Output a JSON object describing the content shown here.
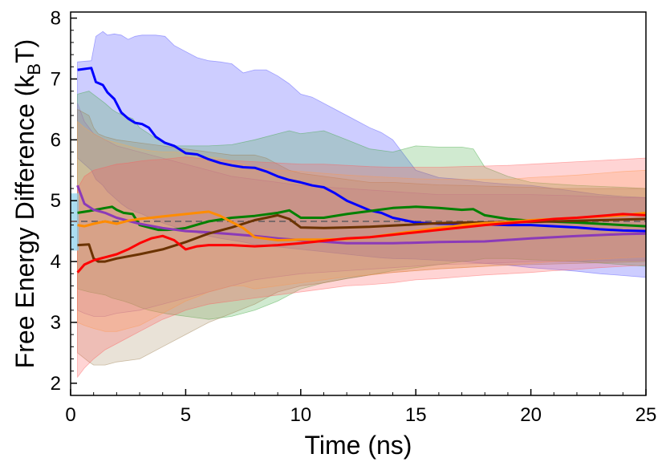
{
  "chart_data": {
    "type": "line",
    "title": "",
    "xlabel": "Time (ns)",
    "ylabel_main": "Free Energy Difference (k",
    "ylabel_sub": "B",
    "ylabel_end": "T)",
    "xlim": [
      0,
      25
    ],
    "ylim": [
      1.8,
      8.1
    ],
    "xticks": [
      0,
      5,
      10,
      15,
      20,
      25
    ],
    "yticks": [
      2,
      3,
      4,
      5,
      6,
      7,
      8
    ],
    "xtick_labels": [
      "0",
      "5",
      "10",
      "15",
      "20",
      "25"
    ],
    "ytick_labels": [
      "2",
      "3",
      "4",
      "5",
      "6",
      "7",
      "8"
    ],
    "grid": false,
    "reference": {
      "value": 4.66,
      "lower": 4.18,
      "upper": 5.12,
      "line_color": "#7a6a6a",
      "band_color": "#87ceeb",
      "x_extent": [
        0,
        0.35
      ]
    },
    "series": [
      {
        "name": "blue",
        "color": "#0000ff",
        "band_color": "#4a4aff",
        "band_opacity": 0.28,
        "x": [
          0.3,
          0.9,
          1.1,
          1.4,
          1.6,
          1.9,
          2.2,
          2.5,
          2.8,
          3.1,
          3.4,
          3.7,
          4.1,
          4.5,
          5.0,
          5.5,
          6.0,
          6.5,
          7.0,
          7.5,
          8.0,
          8.5,
          9.0,
          9.5,
          10.0,
          10.5,
          11.0,
          11.5,
          12.0,
          12.5,
          13.0,
          13.5,
          14.0,
          15.0,
          16.0,
          17.0,
          18.0,
          19.0,
          20.0,
          21.0,
          22.0,
          23.0,
          24.0,
          25.0
        ],
        "y": [
          7.15,
          7.18,
          6.95,
          6.9,
          6.78,
          6.67,
          6.45,
          6.35,
          6.28,
          6.26,
          6.2,
          6.05,
          5.95,
          5.9,
          5.78,
          5.76,
          5.68,
          5.62,
          5.58,
          5.55,
          5.54,
          5.48,
          5.4,
          5.34,
          5.3,
          5.25,
          5.22,
          5.12,
          5.0,
          4.92,
          4.84,
          4.8,
          4.72,
          4.64,
          4.62,
          4.62,
          4.61,
          4.6,
          4.6,
          4.58,
          4.56,
          4.53,
          4.51,
          4.5
        ],
        "lower": [
          5.7,
          5.5,
          5.35,
          5.25,
          5.15,
          5.05,
          4.95,
          4.87,
          4.82,
          4.78,
          4.73,
          4.68,
          4.62,
          4.57,
          4.5,
          4.47,
          4.42,
          4.38,
          4.35,
          4.32,
          4.28,
          4.26,
          4.24,
          4.22,
          4.2,
          4.18,
          4.16,
          4.14,
          4.12,
          4.1,
          4.08,
          4.06,
          4.05,
          4.04,
          4.02,
          4.0,
          3.97,
          3.94,
          3.9,
          3.87,
          3.84,
          3.8,
          3.77,
          3.74
        ],
        "upper": [
          7.28,
          7.3,
          7.7,
          7.78,
          7.72,
          7.74,
          7.72,
          7.65,
          7.7,
          7.72,
          7.72,
          7.72,
          7.7,
          7.55,
          7.45,
          7.35,
          7.3,
          7.28,
          7.25,
          7.1,
          7.15,
          7.15,
          7.05,
          6.92,
          6.75,
          6.7,
          6.6,
          6.5,
          6.4,
          6.3,
          6.2,
          6.12,
          6.0,
          5.5,
          5.38,
          5.35,
          5.3,
          5.27,
          5.25,
          5.2,
          5.15,
          5.1,
          5.07,
          5.05
        ]
      },
      {
        "name": "green",
        "color": "#008000",
        "band_color": "#3aa63a",
        "band_opacity": 0.24,
        "x": [
          0.3,
          0.8,
          1.5,
          1.8,
          2.0,
          2.3,
          2.7,
          3.0,
          3.4,
          3.8,
          4.2,
          4.6,
          5.0,
          6.0,
          7.0,
          8.0,
          9.0,
          9.5,
          10.0,
          11.0,
          12.0,
          13.0,
          14.0,
          15.0,
          16.0,
          17.0,
          17.5,
          18.0,
          19.0,
          20.0,
          22.0,
          24.0,
          25.0
        ],
        "y": [
          4.8,
          4.83,
          4.88,
          4.9,
          4.85,
          4.8,
          4.78,
          4.6,
          4.56,
          4.52,
          4.52,
          4.53,
          4.55,
          4.66,
          4.72,
          4.75,
          4.8,
          4.84,
          4.72,
          4.72,
          4.78,
          4.83,
          4.88,
          4.9,
          4.88,
          4.85,
          4.86,
          4.76,
          4.7,
          4.67,
          4.64,
          4.6,
          4.58
        ],
        "lower": [
          3.55,
          3.5,
          3.45,
          3.4,
          3.38,
          3.35,
          3.3,
          3.25,
          3.2,
          3.17,
          3.14,
          3.12,
          3.1,
          3.05,
          3.1,
          3.2,
          3.35,
          3.45,
          3.55,
          3.65,
          3.72,
          3.78,
          3.85,
          3.9,
          3.95,
          4.0,
          4.02,
          4.05,
          4.05,
          4.03,
          4.0,
          3.95,
          3.92
        ],
        "upper": [
          6.75,
          6.8,
          6.6,
          6.5,
          6.45,
          6.4,
          6.35,
          6.2,
          6.1,
          6.0,
          5.95,
          5.9,
          5.9,
          5.9,
          5.92,
          6.0,
          6.1,
          6.15,
          6.1,
          6.15,
          6.0,
          5.85,
          5.8,
          5.9,
          5.88,
          5.88,
          5.85,
          5.55,
          5.4,
          5.3,
          5.25,
          5.22,
          5.2
        ]
      },
      {
        "name": "purple",
        "color": "#8b3ab8",
        "band_color": "#9060c0",
        "band_opacity": 0.15,
        "x": [
          0.3,
          0.6,
          1.0,
          1.5,
          2.0,
          3.0,
          4.0,
          5.0,
          6.0,
          7.0,
          8.0,
          9.0,
          10.0,
          12.0,
          14.0,
          16.0,
          18.0,
          20.0,
          22.0,
          24.0,
          25.0
        ],
        "y": [
          5.25,
          4.95,
          4.85,
          4.8,
          4.72,
          4.62,
          4.55,
          4.5,
          4.48,
          4.45,
          4.42,
          4.38,
          4.35,
          4.3,
          4.3,
          4.32,
          4.33,
          4.38,
          4.42,
          4.45,
          4.46
        ],
        "lower": [
          3.2,
          3.15,
          3.1,
          3.1,
          3.15,
          3.2,
          3.3,
          3.4,
          3.5,
          3.6,
          3.7,
          3.75,
          3.8,
          3.85,
          3.9,
          3.95,
          3.97,
          4.0,
          4.0,
          4.02,
          4.02
        ],
        "upper": [
          6.6,
          6.3,
          6.1,
          6.0,
          5.9,
          5.8,
          5.7,
          5.6,
          5.5,
          5.4,
          5.35,
          5.3,
          5.25,
          5.2,
          5.15,
          5.1,
          5.1,
          5.1,
          5.08,
          5.05,
          5.05
        ]
      },
      {
        "name": "brown",
        "color": "#6b3300",
        "band_color": "#9a7a4a",
        "band_opacity": 0.22,
        "x": [
          0.3,
          0.8,
          1.0,
          1.2,
          1.5,
          2.0,
          3.0,
          4.0,
          5.0,
          6.0,
          7.0,
          8.0,
          8.5,
          9.0,
          9.5,
          10.0,
          11.0,
          12.0,
          13.0,
          14.0,
          15.0,
          16.0,
          17.0,
          18.0,
          19.0,
          20.0,
          21.0,
          22.0,
          23.0,
          24.0,
          25.0
        ],
        "y": [
          4.27,
          4.28,
          4.05,
          4.0,
          4.0,
          4.05,
          4.12,
          4.2,
          4.32,
          4.46,
          4.56,
          4.68,
          4.72,
          4.76,
          4.7,
          4.56,
          4.55,
          4.56,
          4.57,
          4.59,
          4.61,
          4.63,
          4.64,
          4.64,
          4.65,
          4.65,
          4.66,
          4.67,
          4.68,
          4.69,
          4.7
        ],
        "lower": [
          2.5,
          2.35,
          2.3,
          2.3,
          2.3,
          2.35,
          2.4,
          2.6,
          2.8,
          3.0,
          3.15,
          3.3,
          3.4,
          3.5,
          3.55,
          3.6,
          3.65,
          3.72,
          3.78,
          3.82,
          3.85,
          3.88,
          3.9,
          3.92,
          3.94,
          3.95,
          3.96,
          3.97,
          3.98,
          3.99,
          4.0
        ],
        "upper": [
          6.5,
          6.4,
          6.2,
          6.1,
          6.05,
          6.0,
          5.95,
          5.9,
          5.85,
          5.8,
          5.75,
          5.75,
          5.7,
          5.6,
          5.5,
          5.45,
          5.4,
          5.35,
          5.3,
          5.3,
          5.28,
          5.26,
          5.25,
          5.24,
          5.23,
          5.22,
          5.2,
          5.2,
          5.2,
          5.2,
          5.2
        ]
      },
      {
        "name": "orange",
        "color": "#ff8c00",
        "band_color": "#ffab4a",
        "band_opacity": 0.22,
        "x": [
          0.3,
          0.6,
          1.0,
          1.5,
          2.0,
          2.5,
          3.0,
          3.5,
          4.0,
          4.5,
          5.0,
          5.5,
          6.0,
          6.5,
          7.0,
          7.5,
          8.0,
          9.0,
          10.0,
          11.0,
          12.0,
          13.0,
          14.0,
          15.0,
          16.0,
          17.0,
          18.0,
          19.0,
          20.0,
          21.0,
          22.0,
          23.0,
          24.0,
          25.0
        ],
        "y": [
          4.6,
          4.58,
          4.62,
          4.66,
          4.62,
          4.67,
          4.7,
          4.72,
          4.74,
          4.76,
          4.78,
          4.8,
          4.82,
          4.75,
          4.65,
          4.55,
          4.4,
          4.35,
          4.36,
          4.36,
          4.37,
          4.4,
          4.45,
          4.5,
          4.55,
          4.6,
          4.63,
          4.65,
          4.68,
          4.7,
          4.72,
          4.74,
          4.76,
          4.8
        ],
        "lower": [
          3.0,
          2.95,
          2.9,
          2.85,
          2.85,
          2.9,
          2.95,
          3.05,
          3.15,
          3.25,
          3.35,
          3.42,
          3.5,
          3.55,
          3.6,
          3.6,
          3.55,
          3.6,
          3.65,
          3.7,
          3.75,
          3.78,
          3.82,
          3.85,
          3.88,
          3.9,
          3.92,
          3.95,
          3.97,
          4.0,
          4.02,
          4.04,
          4.06,
          4.08
        ],
        "upper": [
          6.3,
          6.2,
          6.1,
          6.0,
          5.95,
          5.9,
          5.85,
          5.82,
          5.8,
          5.8,
          5.78,
          5.75,
          5.72,
          5.7,
          5.65,
          5.6,
          5.55,
          5.5,
          5.48,
          5.45,
          5.42,
          5.4,
          5.38,
          5.36,
          5.35,
          5.35,
          5.35,
          5.35,
          5.38,
          5.4,
          5.42,
          5.45,
          5.48,
          5.5
        ]
      },
      {
        "name": "red",
        "color": "#ff0000",
        "band_color": "#ff5a5a",
        "band_opacity": 0.26,
        "x": [
          0.3,
          0.6,
          1.0,
          1.5,
          2.0,
          2.5,
          3.0,
          3.5,
          4.0,
          4.5,
          5.0,
          5.5,
          6.0,
          7.0,
          8.0,
          9.0,
          10.0,
          11.0,
          12.0,
          13.0,
          14.0,
          15.0,
          16.0,
          17.0,
          18.0,
          19.0,
          20.0,
          21.0,
          22.0,
          23.0,
          24.0,
          25.0
        ],
        "y": [
          3.82,
          3.95,
          4.02,
          4.07,
          4.12,
          4.2,
          4.3,
          4.38,
          4.42,
          4.35,
          4.2,
          4.25,
          4.27,
          4.27,
          4.25,
          4.27,
          4.3,
          4.34,
          4.38,
          4.4,
          4.44,
          4.48,
          4.52,
          4.56,
          4.6,
          4.63,
          4.66,
          4.7,
          4.72,
          4.75,
          4.78,
          4.76
        ],
        "lower": [
          2.1,
          2.25,
          2.4,
          2.55,
          2.65,
          2.75,
          2.85,
          2.95,
          3.05,
          3.12,
          3.2,
          3.25,
          3.3,
          3.35,
          3.4,
          3.45,
          3.5,
          3.55,
          3.6,
          3.62,
          3.65,
          3.7,
          3.72,
          3.75,
          3.78,
          3.8,
          3.82,
          3.85,
          3.87,
          3.9,
          3.92,
          3.94
        ],
        "upper": [
          5.2,
          5.4,
          5.5,
          5.55,
          5.6,
          5.62,
          5.65,
          5.67,
          5.68,
          5.7,
          5.72,
          5.7,
          5.68,
          5.66,
          5.64,
          5.62,
          5.6,
          5.6,
          5.58,
          5.56,
          5.55,
          5.55,
          5.55,
          5.56,
          5.57,
          5.58,
          5.6,
          5.62,
          5.64,
          5.66,
          5.68,
          5.7
        ]
      }
    ]
  }
}
